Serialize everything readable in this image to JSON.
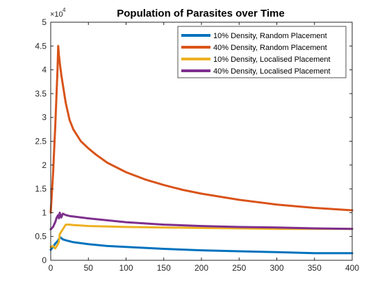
{
  "chart_data": {
    "type": "line",
    "title": "Population of Parasites over Time",
    "xlabel": "",
    "ylabel": "",
    "xlim": [
      0,
      400
    ],
    "ylim": [
      0,
      5
    ],
    "y_multiplier_label": "×10",
    "y_multiplier_exponent": "4",
    "x_ticks": [
      0,
      50,
      100,
      150,
      200,
      250,
      300,
      350,
      400
    ],
    "y_ticks": [
      "0",
      "0.5",
      "1",
      "1.5",
      "2",
      "2.5",
      "3",
      "3.5",
      "4",
      "4.5",
      "5"
    ],
    "grid": false,
    "legend_position": "top-right",
    "series": [
      {
        "name": "10% Density, Random Placement",
        "color": "#0072BD",
        "x": [
          0,
          3,
          6,
          9,
          11,
          13,
          16,
          20,
          30,
          50,
          75,
          100,
          150,
          200,
          250,
          300,
          350,
          400
        ],
        "values": [
          0.22,
          0.28,
          0.35,
          0.4,
          0.45,
          0.48,
          0.44,
          0.42,
          0.38,
          0.34,
          0.3,
          0.28,
          0.24,
          0.21,
          0.19,
          0.17,
          0.15,
          0.15
        ]
      },
      {
        "name": "40% Density, Random Placement",
        "color": "#D95319",
        "x": [
          0,
          3,
          6,
          9,
          10,
          11,
          12,
          14,
          17,
          20,
          25,
          30,
          40,
          50,
          60,
          75,
          100,
          125,
          150,
          175,
          200,
          250,
          300,
          350,
          400
        ],
        "values": [
          1.0,
          1.8,
          2.8,
          4.0,
          4.5,
          4.3,
          4.15,
          3.9,
          3.6,
          3.3,
          2.95,
          2.75,
          2.5,
          2.35,
          2.22,
          2.05,
          1.85,
          1.7,
          1.58,
          1.48,
          1.4,
          1.27,
          1.17,
          1.1,
          1.05
        ]
      },
      {
        "name": "10% Density, Localised Placement",
        "color": "#EDB120",
        "x": [
          0,
          3,
          6,
          8,
          10,
          11,
          12,
          14,
          16,
          18,
          20,
          25,
          30,
          40,
          50,
          75,
          100,
          150,
          200,
          250,
          300,
          350,
          400
        ],
        "values": [
          0.28,
          0.3,
          0.25,
          0.3,
          0.35,
          0.4,
          0.55,
          0.6,
          0.65,
          0.7,
          0.75,
          0.75,
          0.74,
          0.73,
          0.72,
          0.71,
          0.7,
          0.69,
          0.68,
          0.67,
          0.66,
          0.66,
          0.66
        ]
      },
      {
        "name": "40% Density, Localised Placement",
        "color": "#7E2F8E",
        "x": [
          0,
          3,
          6,
          8,
          10,
          11,
          12,
          14,
          16,
          20,
          25,
          30,
          40,
          50,
          75,
          100,
          150,
          200,
          250,
          300,
          350,
          400
        ],
        "values": [
          0.65,
          0.7,
          0.8,
          0.9,
          0.95,
          0.88,
          1.0,
          0.9,
          0.98,
          0.95,
          0.93,
          0.92,
          0.9,
          0.88,
          0.84,
          0.8,
          0.75,
          0.72,
          0.7,
          0.69,
          0.67,
          0.66
        ]
      }
    ]
  }
}
